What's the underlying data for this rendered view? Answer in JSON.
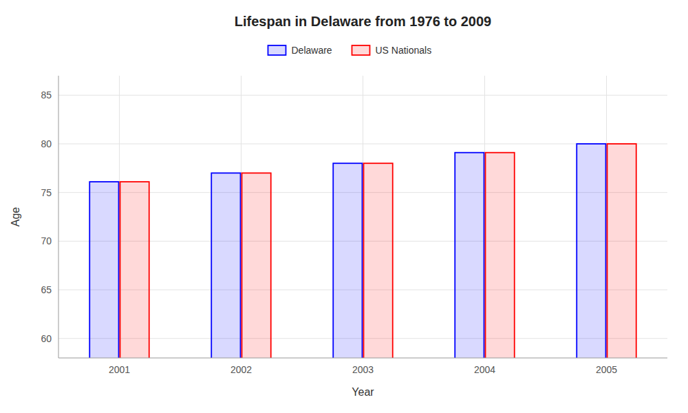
{
  "chart_data": {
    "type": "bar",
    "title": "Lifespan in Delaware from 1976 to 2009",
    "x_label": "Year",
    "y_label": "Age",
    "categories": [
      "2001",
      "2002",
      "2003",
      "2004",
      "2005"
    ],
    "series": [
      {
        "name": "Delaware",
        "color": "#0000ff",
        "values": [
          76.1,
          77.0,
          78.0,
          79.1,
          80.0
        ]
      },
      {
        "name": "US Nationals",
        "color": "#ff0000",
        "values": [
          76.1,
          77.0,
          78.0,
          79.1,
          80.0
        ]
      }
    ],
    "ylim": [
      58,
      87
    ],
    "yticks": [
      60,
      65,
      70,
      75,
      80,
      85
    ],
    "grid": true,
    "legend": "top"
  }
}
